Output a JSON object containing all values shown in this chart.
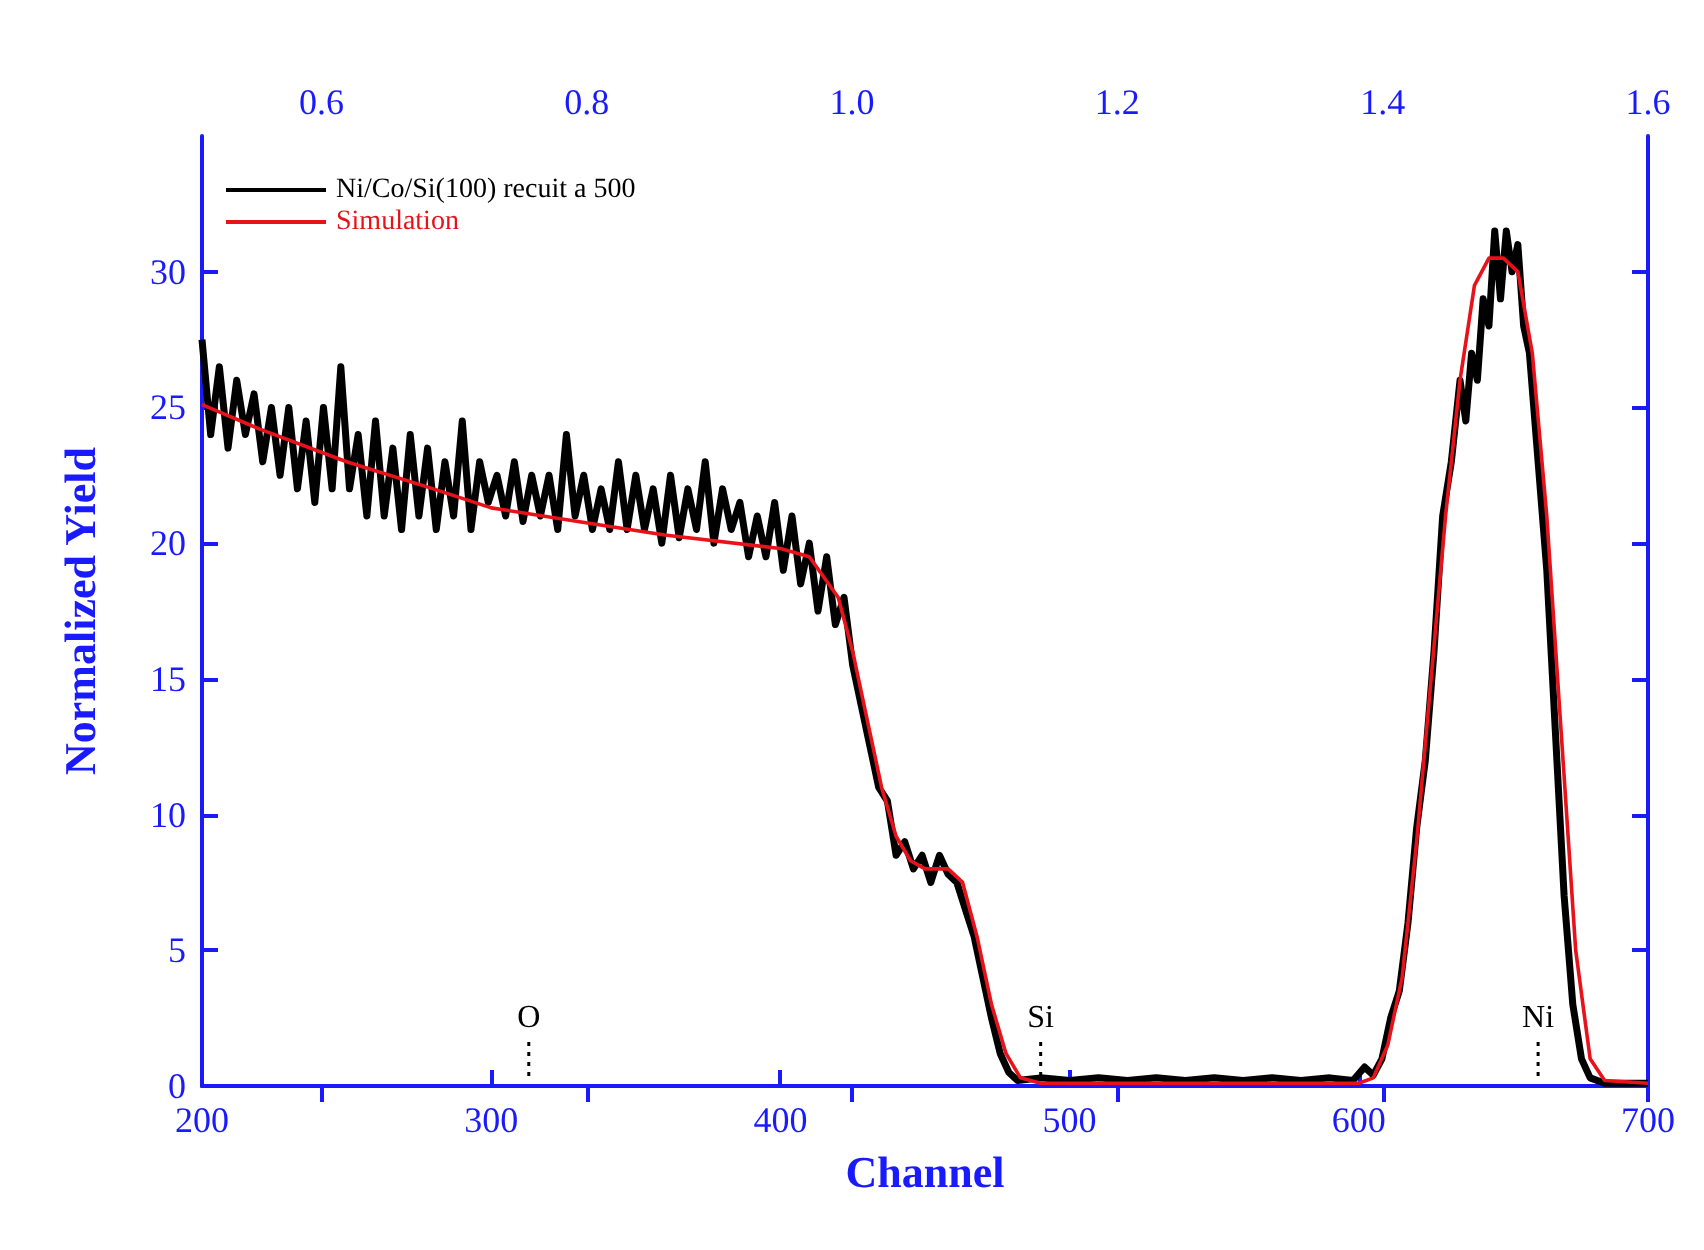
{
  "chart_data": {
    "type": "line",
    "xlabel": "Channel",
    "ylabel": "Normalized Yield",
    "xlim": [
      200,
      700
    ],
    "xticks": [
      200,
      300,
      400,
      500,
      600,
      700
    ],
    "x2lim": [
      0.51,
      1.6
    ],
    "x2ticks": [
      0.6,
      0.8,
      {
        "value": 1,
        "label": "1.0"
      },
      1.2,
      1.4,
      1.6
    ],
    "ylim": [
      0,
      35
    ],
    "yticks": [
      0,
      5,
      10,
      15,
      20,
      25,
      30
    ],
    "legend": "top left",
    "grid": false,
    "line_style": "solid",
    "marker": "none",
    "ref_lines": [
      {
        "axis": "x",
        "value": 313,
        "label": "O",
        "line_style": "dotted",
        "color": "#000000"
      },
      {
        "axis": "x",
        "value": 490,
        "label": "Si",
        "line_style": "dotted",
        "color": "#000000"
      },
      {
        "axis": "x",
        "value": 662,
        "label": "Ni",
        "line_style": "dotted",
        "color": "#000000"
      }
    ],
    "series": [
      {
        "name": "Ni/Co/Si(100) recuit a 500",
        "color": "#000000",
        "x": [
          200,
          203,
          206,
          209,
          212,
          215,
          218,
          221,
          224,
          227,
          230,
          233,
          236,
          239,
          242,
          245,
          248,
          251,
          254,
          257,
          260,
          263,
          266,
          269,
          272,
          275,
          278,
          281,
          284,
          287,
          290,
          293,
          296,
          299,
          302,
          305,
          308,
          311,
          314,
          317,
          320,
          323,
          326,
          329,
          332,
          335,
          338,
          341,
          344,
          347,
          350,
          353,
          356,
          359,
          362,
          365,
          368,
          371,
          374,
          377,
          380,
          383,
          386,
          389,
          392,
          395,
          398,
          401,
          404,
          407,
          410,
          413,
          416,
          419,
          422,
          425,
          428,
          431,
          434,
          437,
          440,
          443,
          446,
          449,
          452,
          455,
          458,
          461,
          464,
          467,
          470,
          473,
          476,
          479,
          482,
          490,
          500,
          510,
          520,
          530,
          540,
          550,
          560,
          570,
          580,
          590,
          598,
          602,
          605,
          608,
          611,
          614,
          617,
          620,
          623,
          626,
          629,
          632,
          635,
          637,
          639,
          641,
          643,
          645,
          647,
          649,
          651,
          653,
          655,
          657,
          659,
          662,
          665,
          668,
          671,
          674,
          677,
          680,
          685,
          700
        ],
        "values": [
          27.5,
          24,
          26.5,
          23.5,
          26,
          24,
          25.5,
          23,
          25,
          22.5,
          25,
          22,
          24.5,
          21.5,
          25,
          22,
          26.5,
          22,
          24,
          21,
          24.5,
          21,
          23.5,
          20.5,
          24,
          21,
          23.5,
          20.5,
          23,
          21,
          24.5,
          20.5,
          23,
          21.5,
          22.5,
          21,
          23,
          20.8,
          22.5,
          21,
          22.5,
          20.5,
          24,
          21,
          22.5,
          20.5,
          22,
          20.5,
          23,
          20.5,
          22.5,
          20.5,
          22,
          20,
          22.5,
          20.2,
          22,
          20.5,
          23,
          20,
          22,
          20.5,
          21.5,
          19.5,
          21,
          19.5,
          21.5,
          19,
          21,
          18.5,
          20,
          17.5,
          19.5,
          17,
          18,
          15.5,
          14,
          12.5,
          11,
          10.5,
          8.5,
          9,
          8,
          8.5,
          7.5,
          8.5,
          7.8,
          7.5,
          6.5,
          5.5,
          4,
          2.5,
          1.2,
          0.5,
          0.2,
          0.3,
          0.2,
          0.3,
          0.2,
          0.3,
          0.2,
          0.3,
          0.2,
          0.3,
          0.2,
          0.3,
          0.2,
          0.7,
          0.4,
          1,
          2.5,
          3.5,
          6,
          9.5,
          12,
          16,
          21,
          23,
          26,
          24.5,
          27,
          26,
          29,
          28,
          31.5,
          29,
          31.5,
          30,
          31,
          28,
          27,
          23,
          19,
          13,
          7,
          3,
          1,
          0.3,
          0.1,
          0.1
        ]
      },
      {
        "name": "Simulation",
        "color": "#e8121a",
        "x": [
          200,
          220,
          250,
          280,
          300,
          330,
          360,
          400,
          410,
          420,
          425,
          430,
          435,
          440,
          445,
          450,
          458,
          463,
          468,
          473,
          478,
          483,
          490,
          600,
          605,
          610,
          615,
          620,
          625,
          630,
          635,
          640,
          645,
          650,
          655,
          660,
          665,
          670,
          675,
          680,
          685,
          700
        ],
        "values": [
          25.1,
          24.2,
          23,
          22,
          21.3,
          20.8,
          20.3,
          19.8,
          19.5,
          18,
          16,
          13.5,
          11,
          9.2,
          8.3,
          8,
          8,
          7.5,
          5.5,
          3,
          1.2,
          0.3,
          0.1,
          0.1,
          0.3,
          1.5,
          4,
          9,
          15,
          21,
          26,
          29.5,
          30.5,
          30.5,
          30,
          27,
          21,
          13,
          5,
          1,
          0.2,
          0.1
        ]
      }
    ]
  }
}
